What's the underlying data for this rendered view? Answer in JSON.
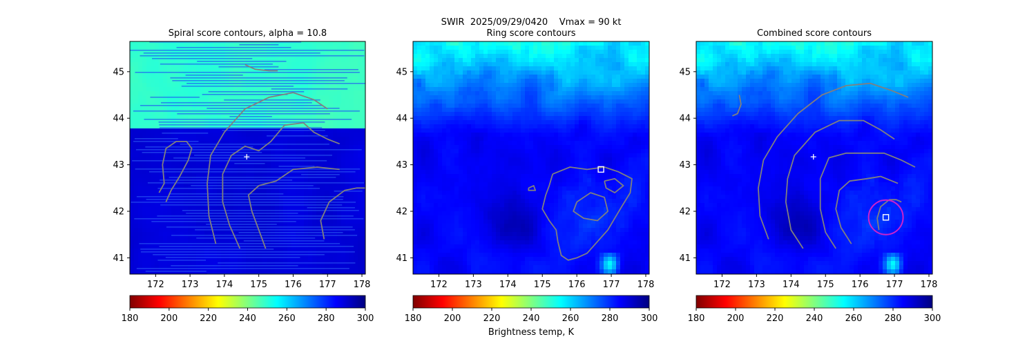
{
  "figure": {
    "suptitle": "SWIR  2025/09/29/0420    Vmax = 90 kt",
    "colorbar_label": "Brightness temp, K"
  },
  "colormap": {
    "name": "jet_r",
    "range": [
      180,
      300
    ],
    "stops": [
      "#800000",
      "#ff0000",
      "#ff8000",
      "#ffff00",
      "#80ff80",
      "#00ffff",
      "#0080ff",
      "#0000ff",
      "#000080"
    ]
  },
  "colors": {
    "contour": "#808080",
    "marker": "#ffffff",
    "circle": "#cc22cc"
  },
  "chart_data": [
    {
      "type": "heatmap",
      "title": "Spiral score contours, alpha = 10.8",
      "xlim": [
        171.25,
        178.1
      ],
      "ylim": [
        40.65,
        45.65
      ],
      "xticks": [
        172,
        173,
        174,
        175,
        176,
        177,
        178
      ],
      "yticks": [
        41,
        42,
        43,
        44,
        45
      ],
      "colorbar_ticks": [
        180,
        200,
        220,
        240,
        260,
        280,
        300
      ],
      "background": "striped brightness temperature field, ~245 K north of 43.8N, ~290 K south",
      "center_marker": {
        "x": 174.65,
        "y": 43.17,
        "symbol": "+"
      },
      "contours": [
        [
          [
            172.3,
            42.2
          ],
          [
            172.45,
            42.45
          ],
          [
            172.7,
            42.75
          ],
          [
            172.95,
            43.1
          ],
          [
            173.05,
            43.35
          ],
          [
            172.9,
            43.5
          ],
          [
            172.6,
            43.5
          ],
          [
            172.3,
            43.35
          ],
          [
            172.2,
            43.0
          ],
          [
            172.25,
            42.6
          ],
          [
            172.1,
            42.4
          ]
        ],
        [
          [
            173.75,
            41.3
          ],
          [
            173.55,
            41.9
          ],
          [
            173.5,
            42.6
          ],
          [
            173.6,
            43.2
          ],
          [
            174.0,
            43.7
          ],
          [
            174.6,
            44.2
          ],
          [
            175.3,
            44.45
          ],
          [
            176.0,
            44.55
          ],
          [
            176.6,
            44.4
          ],
          [
            177.0,
            44.2
          ]
        ],
        [
          [
            174.45,
            41.2
          ],
          [
            174.15,
            41.7
          ],
          [
            173.95,
            42.2
          ],
          [
            173.95,
            42.8
          ],
          [
            174.2,
            43.2
          ],
          [
            174.6,
            43.4
          ],
          [
            175.0,
            43.3
          ],
          [
            175.35,
            43.5
          ],
          [
            175.75,
            43.85
          ],
          [
            176.3,
            43.9
          ],
          [
            176.6,
            43.7
          ],
          [
            177.0,
            43.55
          ],
          [
            177.35,
            43.45
          ]
        ],
        [
          [
            175.2,
            41.2
          ],
          [
            175.0,
            41.6
          ],
          [
            174.8,
            42.0
          ],
          [
            174.7,
            42.35
          ],
          [
            175.0,
            42.55
          ],
          [
            175.5,
            42.65
          ],
          [
            176.0,
            42.9
          ],
          [
            176.7,
            42.95
          ],
          [
            177.35,
            42.9
          ]
        ],
        [
          [
            176.9,
            41.4
          ],
          [
            176.8,
            41.8
          ],
          [
            177.05,
            42.2
          ],
          [
            177.5,
            42.45
          ],
          [
            177.85,
            42.5
          ],
          [
            178.2,
            42.5
          ]
        ],
        [
          [
            174.6,
            45.15
          ],
          [
            174.9,
            45.05
          ],
          [
            175.3,
            45.02
          ],
          [
            175.55,
            45.02
          ]
        ]
      ]
    },
    {
      "type": "heatmap",
      "title": "Ring score contours",
      "xlim": [
        171.25,
        178.1
      ],
      "ylim": [
        40.65,
        45.65
      ],
      "xticks": [
        172,
        173,
        174,
        175,
        176,
        177,
        178
      ],
      "yticks": [
        41,
        42,
        43,
        44,
        45
      ],
      "colorbar_ticks": [
        180,
        200,
        220,
        240,
        260,
        280,
        300
      ],
      "background": "IR brightness temperature imagery, warm ~285-300 K with cloud bands ~255-270 K",
      "square_marker": {
        "x": 176.7,
        "y": 42.9
      },
      "contours": [
        [
          [
            175.3,
            42.8
          ],
          [
            175.8,
            42.95
          ],
          [
            176.3,
            42.9
          ],
          [
            176.8,
            42.95
          ],
          [
            177.2,
            42.85
          ],
          [
            177.6,
            42.7
          ],
          [
            177.55,
            42.4
          ],
          [
            177.3,
            42.1
          ],
          [
            177.1,
            41.85
          ],
          [
            176.9,
            41.6
          ],
          [
            176.6,
            41.35
          ],
          [
            176.3,
            41.1
          ],
          [
            176.0,
            41.0
          ],
          [
            175.75,
            40.95
          ],
          [
            175.55,
            41.05
          ],
          [
            175.45,
            41.35
          ],
          [
            175.4,
            41.6
          ],
          [
            175.2,
            41.8
          ],
          [
            175.0,
            42.05
          ],
          [
            175.1,
            42.35
          ],
          [
            175.2,
            42.55
          ],
          [
            175.3,
            42.8
          ]
        ],
        [
          [
            176.0,
            42.2
          ],
          [
            176.4,
            42.4
          ],
          [
            176.8,
            42.3
          ],
          [
            176.9,
            42.0
          ],
          [
            176.6,
            41.8
          ],
          [
            176.2,
            41.85
          ],
          [
            175.9,
            42.0
          ],
          [
            176.0,
            42.2
          ]
        ],
        [
          [
            176.8,
            42.65
          ],
          [
            177.1,
            42.7
          ],
          [
            177.35,
            42.55
          ],
          [
            177.1,
            42.4
          ],
          [
            176.85,
            42.5
          ],
          [
            176.8,
            42.65
          ]
        ],
        [
          [
            174.6,
            42.5
          ],
          [
            174.75,
            42.55
          ],
          [
            174.8,
            42.45
          ],
          [
            174.6,
            42.45
          ],
          [
            174.6,
            42.5
          ]
        ]
      ]
    },
    {
      "type": "heatmap",
      "title": "Combined score contours",
      "xlim": [
        171.25,
        178.1
      ],
      "ylim": [
        40.65,
        45.65
      ],
      "xticks": [
        172,
        173,
        174,
        175,
        176,
        177,
        178
      ],
      "yticks": [
        41,
        42,
        43,
        44,
        45
      ],
      "colorbar_ticks": [
        180,
        200,
        220,
        240,
        260,
        280,
        300
      ],
      "background": "IR brightness temperature imagery, warm ~285-300 K with cloud bands ~255-270 K",
      "center_marker": {
        "x": 174.65,
        "y": 43.17,
        "symbol": "+"
      },
      "square_marker": {
        "x": 176.75,
        "y": 41.87
      },
      "circle": {
        "x": 176.75,
        "y": 41.87,
        "radius_deg": 0.5
      },
      "contours": [
        [
          [
            172.3,
            44.05
          ],
          [
            172.45,
            44.1
          ],
          [
            172.55,
            44.3
          ],
          [
            172.5,
            44.5
          ]
        ],
        [
          [
            173.35,
            41.4
          ],
          [
            173.1,
            41.9
          ],
          [
            173.05,
            42.5
          ],
          [
            173.2,
            43.1
          ],
          [
            173.6,
            43.6
          ],
          [
            174.2,
            44.1
          ],
          [
            174.9,
            44.5
          ],
          [
            175.6,
            44.7
          ],
          [
            176.3,
            44.75
          ],
          [
            176.9,
            44.6
          ],
          [
            177.4,
            44.45
          ]
        ],
        [
          [
            174.35,
            41.2
          ],
          [
            174.0,
            41.6
          ],
          [
            173.85,
            42.2
          ],
          [
            173.9,
            42.7
          ],
          [
            174.1,
            43.2
          ],
          [
            174.7,
            43.7
          ],
          [
            175.4,
            43.95
          ],
          [
            176.1,
            43.95
          ],
          [
            176.6,
            43.75
          ],
          [
            177.0,
            43.55
          ]
        ],
        [
          [
            175.3,
            41.2
          ],
          [
            175.0,
            41.55
          ],
          [
            174.85,
            42.05
          ],
          [
            174.85,
            42.7
          ],
          [
            175.1,
            43.15
          ],
          [
            175.6,
            43.25
          ],
          [
            176.2,
            43.25
          ],
          [
            176.7,
            43.25
          ],
          [
            177.2,
            43.1
          ],
          [
            177.6,
            42.95
          ]
        ],
        [
          [
            175.75,
            41.3
          ],
          [
            175.45,
            41.65
          ],
          [
            175.3,
            42.05
          ],
          [
            175.4,
            42.45
          ],
          [
            175.7,
            42.65
          ],
          [
            176.2,
            42.7
          ],
          [
            176.6,
            42.75
          ],
          [
            177.1,
            42.6
          ]
        ],
        [
          [
            176.55,
            41.6
          ],
          [
            176.5,
            41.85
          ],
          [
            176.6,
            42.1
          ],
          [
            176.85,
            42.25
          ],
          [
            177.05,
            42.25
          ],
          [
            177.2,
            42.2
          ]
        ]
      ]
    }
  ]
}
